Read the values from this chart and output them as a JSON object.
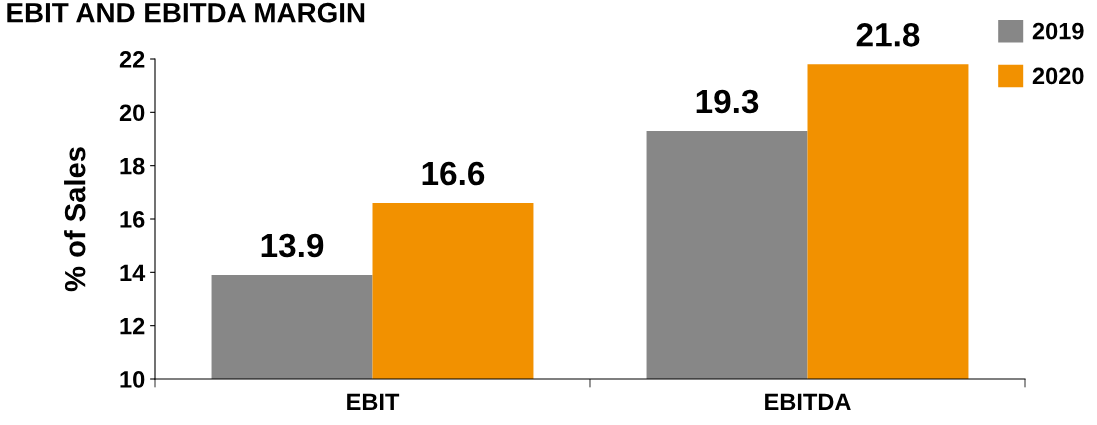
{
  "chart_data": {
    "type": "bar",
    "title": "EBIT AND EBITDA MARGIN",
    "ylabel": "% of Sales",
    "categories": [
      "EBIT",
      "EBITDA"
    ],
    "series": [
      {
        "name": "2019",
        "color": "#878787",
        "values": [
          13.9,
          19.3
        ]
      },
      {
        "name": "2020",
        "color": "#f29100",
        "values": [
          16.6,
          21.8
        ]
      }
    ],
    "ylim": [
      10,
      22
    ],
    "yticks": [
      10,
      12,
      14,
      16,
      18,
      20,
      22
    ],
    "data_labels": true,
    "legend": "top right",
    "grid": false
  }
}
